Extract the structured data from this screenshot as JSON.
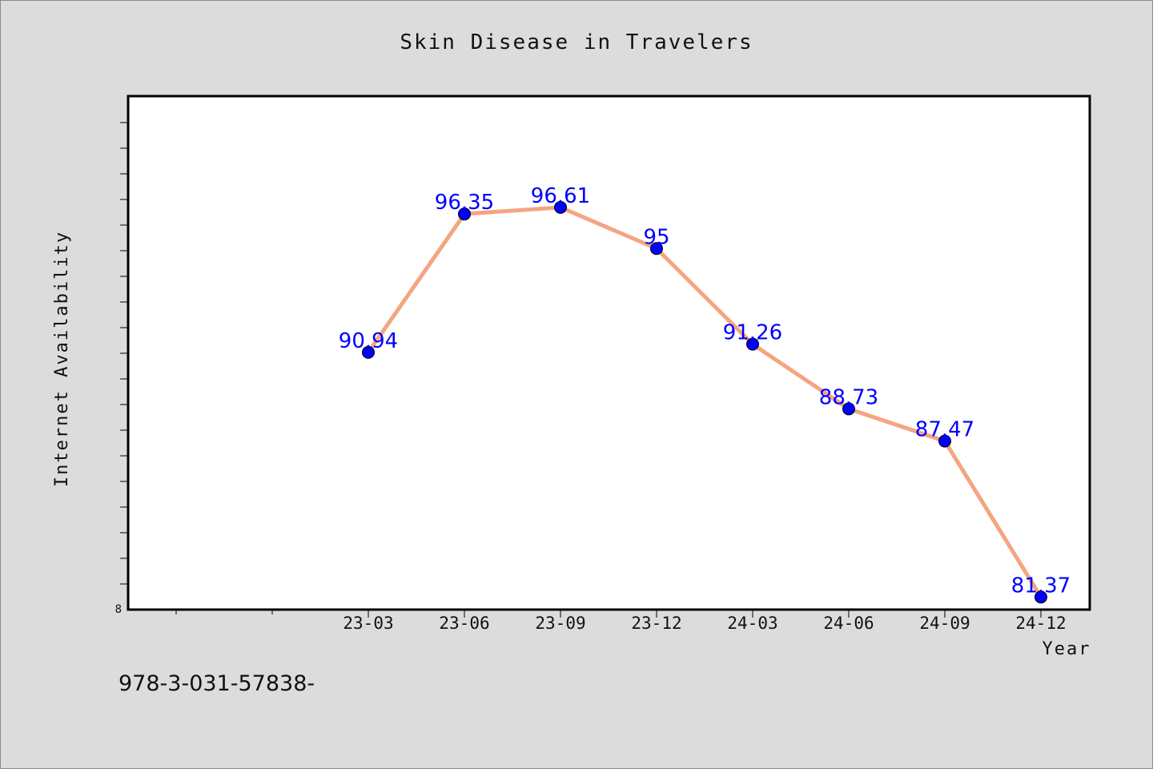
{
  "chart_data": {
    "type": "line",
    "title": "Skin Disease in Travelers",
    "xlabel": "Year",
    "ylabel": "Internet Availability",
    "categories": [
      "23-03",
      "23-06",
      "23-09",
      "23-12",
      "24-03",
      "24-06",
      "24-09",
      "24-12"
    ],
    "series": [
      {
        "values": [
          90.94,
          96.35,
          96.61,
          95,
          91.26,
          88.73,
          87.47,
          81.37
        ],
        "data_labels": [
          "90.94",
          "96.35",
          "96.61",
          "95",
          "91.26",
          "88.73",
          "87.47",
          "81.37"
        ]
      }
    ],
    "ylim": [
      80.88,
      100.96
    ],
    "y_tick_labels": [
      "8"
    ],
    "grid": false,
    "legend": "none",
    "colors": {
      "background": "#dcdcdc",
      "plot_background": "#ffffff",
      "line": "#f4a582",
      "marker": "#0000ff",
      "data_label": "#0000ff"
    }
  },
  "footnote": "978-3-031-57838-"
}
